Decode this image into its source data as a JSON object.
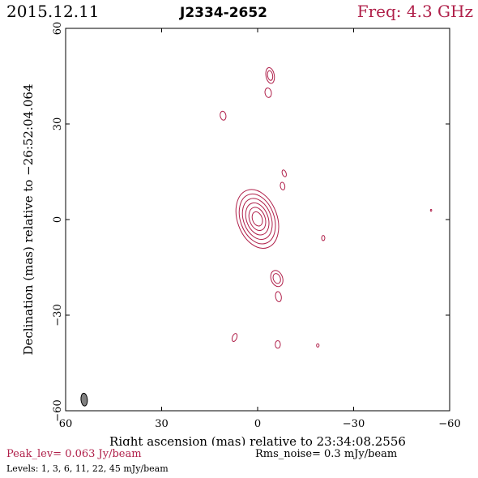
{
  "header": {
    "date": "2015.12.11",
    "source": "J2334-2652",
    "freq": "Freq: 4.3 GHz"
  },
  "footer": {
    "peak": "Peak_lev=  0.063 Jy/beam",
    "rms": "Rms_noise=   0.3 mJy/beam",
    "levels": "Levels:   1,   3,   6,  11,  22,  45 mJy/beam"
  },
  "colors": {
    "contour": "#b0204a",
    "beam": "#808080",
    "accent": "#b0204a"
  },
  "chart_data": {
    "type": "contour",
    "xlabel": "Right ascension (mas) relative to 23:34:08.2556",
    "ylabel": "Declination (mas) relative to −26:52:04.064",
    "xlim": [
      60,
      -60
    ],
    "ylim": [
      -60,
      60
    ],
    "xticks": [
      60,
      30,
      0,
      -30,
      -60
    ],
    "yticks": [
      -60,
      -30,
      0,
      30,
      60
    ],
    "xtick_labels": [
      "60",
      "30",
      "0",
      "−30",
      "−60"
    ],
    "ytick_labels": [
      "−60",
      "−30",
      "0",
      "30",
      "60"
    ],
    "contour_levels_mJy": [
      1,
      3,
      6,
      11,
      22,
      45
    ],
    "core": {
      "x": 0.1,
      "y": 0.2,
      "major": 9.5,
      "minor": 6.2,
      "pa_deg": -20,
      "levels": 6
    },
    "components": [
      {
        "x": -3.9,
        "y": 45.2,
        "major": 2.5,
        "minor": 1.3,
        "pa_deg": -10,
        "levels": 2
      },
      {
        "x": -3.3,
        "y": 39.8,
        "major": 1.5,
        "minor": 1.0,
        "pa_deg": -10,
        "levels": 1
      },
      {
        "x": 10.8,
        "y": 32.6,
        "major": 1.4,
        "minor": 0.9,
        "pa_deg": -10,
        "levels": 1
      },
      {
        "x": -8.3,
        "y": 14.5,
        "major": 1.1,
        "minor": 0.6,
        "pa_deg": -20,
        "levels": 1
      },
      {
        "x": -7.8,
        "y": 10.5,
        "major": 1.2,
        "minor": 0.7,
        "pa_deg": -10,
        "levels": 1
      },
      {
        "x": -20.5,
        "y": -5.8,
        "major": 0.8,
        "minor": 0.5,
        "pa_deg": 0,
        "levels": 1
      },
      {
        "x": -6.0,
        "y": -18.5,
        "major": 2.6,
        "minor": 1.8,
        "pa_deg": -20,
        "levels": 2
      },
      {
        "x": -6.5,
        "y": -24.2,
        "major": 1.6,
        "minor": 0.9,
        "pa_deg": -10,
        "levels": 1
      },
      {
        "x": 7.2,
        "y": -37.0,
        "major": 1.3,
        "minor": 0.7,
        "pa_deg": 20,
        "levels": 1
      },
      {
        "x": -6.3,
        "y": -39.2,
        "major": 1.2,
        "minor": 0.8,
        "pa_deg": 0,
        "levels": 1
      },
      {
        "x": -18.8,
        "y": -39.5,
        "major": 0.5,
        "minor": 0.4,
        "pa_deg": 0,
        "levels": 1
      },
      {
        "x": -54.2,
        "y": 2.9,
        "major": 0.3,
        "minor": 0.2,
        "pa_deg": 0,
        "levels": 1
      }
    ],
    "beam": {
      "x": 54.2,
      "y": -56.5,
      "major": 2.0,
      "minor": 1.0,
      "pa_deg": -5
    }
  }
}
